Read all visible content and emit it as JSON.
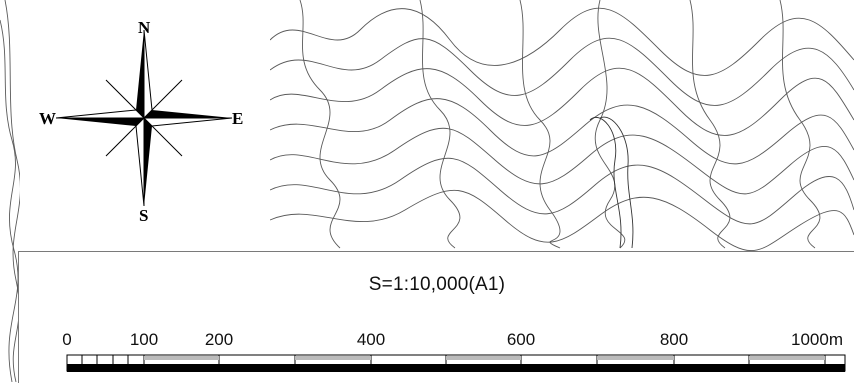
{
  "compass": {
    "north": "N",
    "south": "S",
    "east": "E",
    "west": "W"
  },
  "scale": {
    "title": "S=1:10,000(A1)",
    "ticks": [
      "0",
      "100",
      "200",
      "400",
      "600",
      "800",
      "1000m"
    ]
  },
  "colors": {
    "contour": "#555555",
    "bar": "#000000",
    "background": "#ffffff"
  }
}
